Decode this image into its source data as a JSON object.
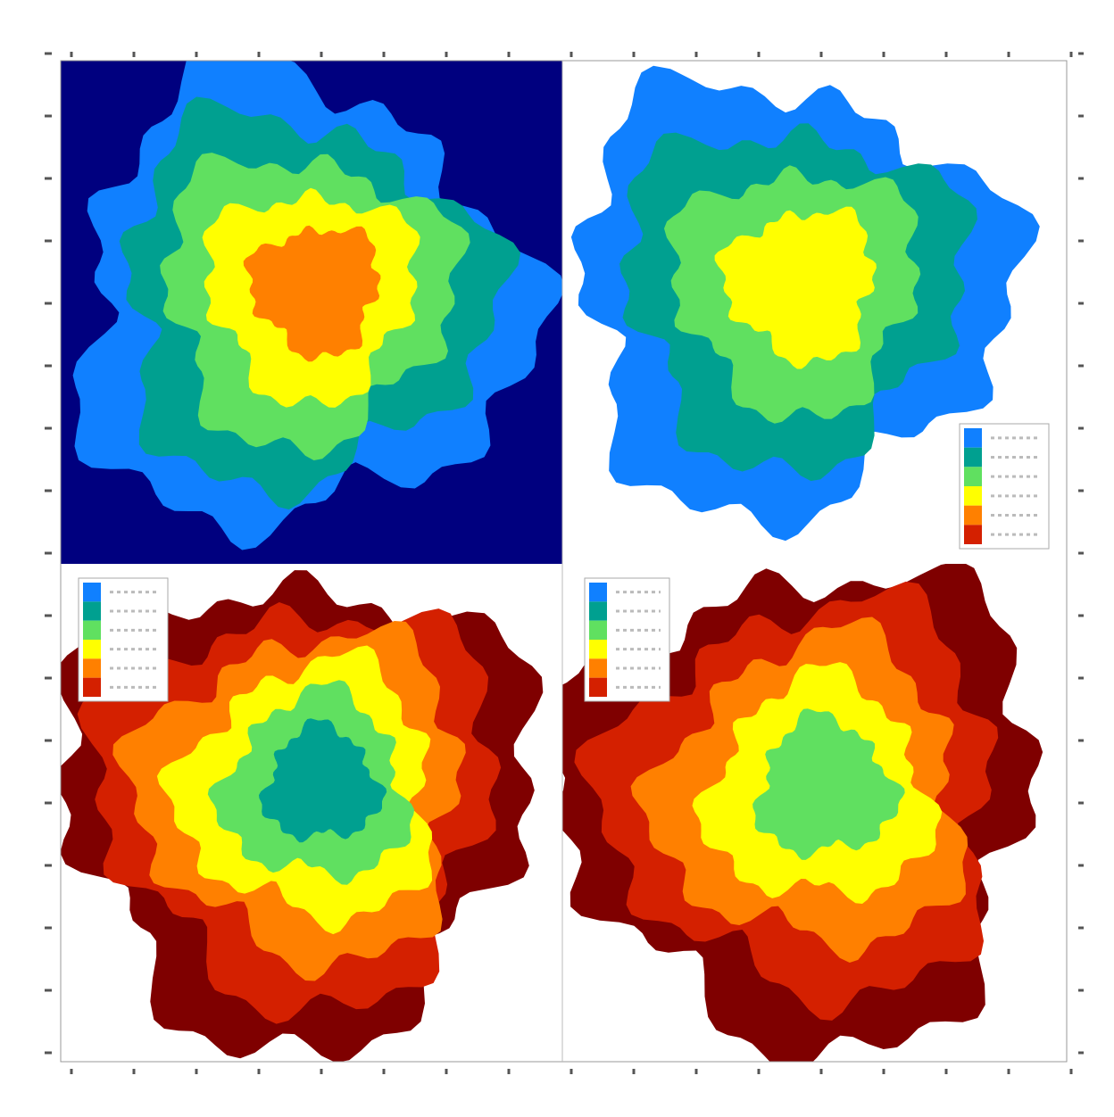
{
  "colormap": [
    "#7f0000",
    "#d42000",
    "#ff8000",
    "#ffff00",
    "#60e060",
    "#00a090",
    "#1080ff",
    "#00007f"
  ],
  "panels": [
    {
      "background": "#00007f"
    },
    {
      "background": "#ffffff"
    },
    {
      "background": "#ffffff"
    },
    {
      "background": "#ffffff"
    }
  ]
}
